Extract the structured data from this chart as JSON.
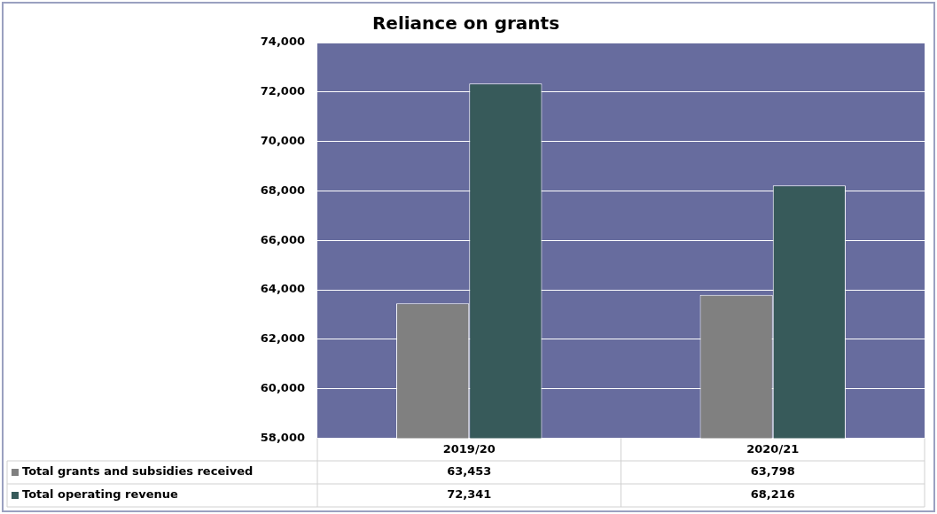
{
  "chart_data": {
    "type": "bar",
    "title": "Reliance on grants",
    "categories": [
      "2019/20",
      "2020/21"
    ],
    "series": [
      {
        "name": "Total grants and subsidies received",
        "color": "#808080",
        "values": [
          63453,
          63798
        ],
        "value_labels": [
          "63,453",
          "63,798"
        ]
      },
      {
        "name": "Total operating revenue",
        "color": "#375a5a",
        "values": [
          72341,
          68216
        ],
        "value_labels": [
          "72,341",
          "68,216"
        ]
      }
    ],
    "ylim": [
      58000,
      74000
    ],
    "yticks": [
      {
        "value": 58000,
        "label": "58,000"
      },
      {
        "value": 60000,
        "label": "60,000"
      },
      {
        "value": 62000,
        "label": "62,000"
      },
      {
        "value": 64000,
        "label": "64,000"
      },
      {
        "value": 66000,
        "label": "66,000"
      },
      {
        "value": 68000,
        "label": "68,000"
      },
      {
        "value": 70000,
        "label": "70,000"
      },
      {
        "value": 72000,
        "label": "72,000"
      },
      {
        "value": 74000,
        "label": "74,000"
      }
    ],
    "grid": "y",
    "legend": "bottom"
  }
}
